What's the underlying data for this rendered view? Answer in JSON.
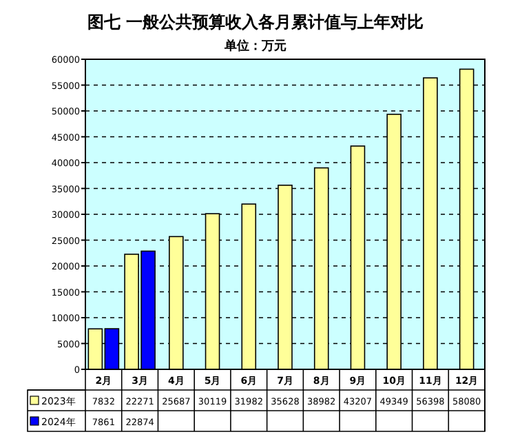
{
  "chart_data": {
    "type": "bar",
    "title": "图七 一般公共预算收入各月累计值与上年对比",
    "subtitle": "单位：万元",
    "categories": [
      "2月",
      "3月",
      "4月",
      "5月",
      "6月",
      "7月",
      "8月",
      "9月",
      "10月",
      "11月",
      "12月"
    ],
    "series": [
      {
        "name": "2023年",
        "color": "#ffff99",
        "values": [
          7832,
          22271,
          25687,
          30119,
          31982,
          35628,
          38982,
          43207,
          49349,
          56398,
          58080
        ]
      },
      {
        "name": "2024年",
        "color": "#0000ff",
        "values": [
          7861,
          22874,
          null,
          null,
          null,
          null,
          null,
          null,
          null,
          null,
          null
        ]
      }
    ],
    "ylim": [
      0,
      60000
    ],
    "yticks": [
      0,
      5000,
      10000,
      15000,
      20000,
      25000,
      30000,
      35000,
      40000,
      45000,
      50000,
      55000,
      60000
    ],
    "grid": "y",
    "data_labels": true,
    "legend": "bottom"
  }
}
